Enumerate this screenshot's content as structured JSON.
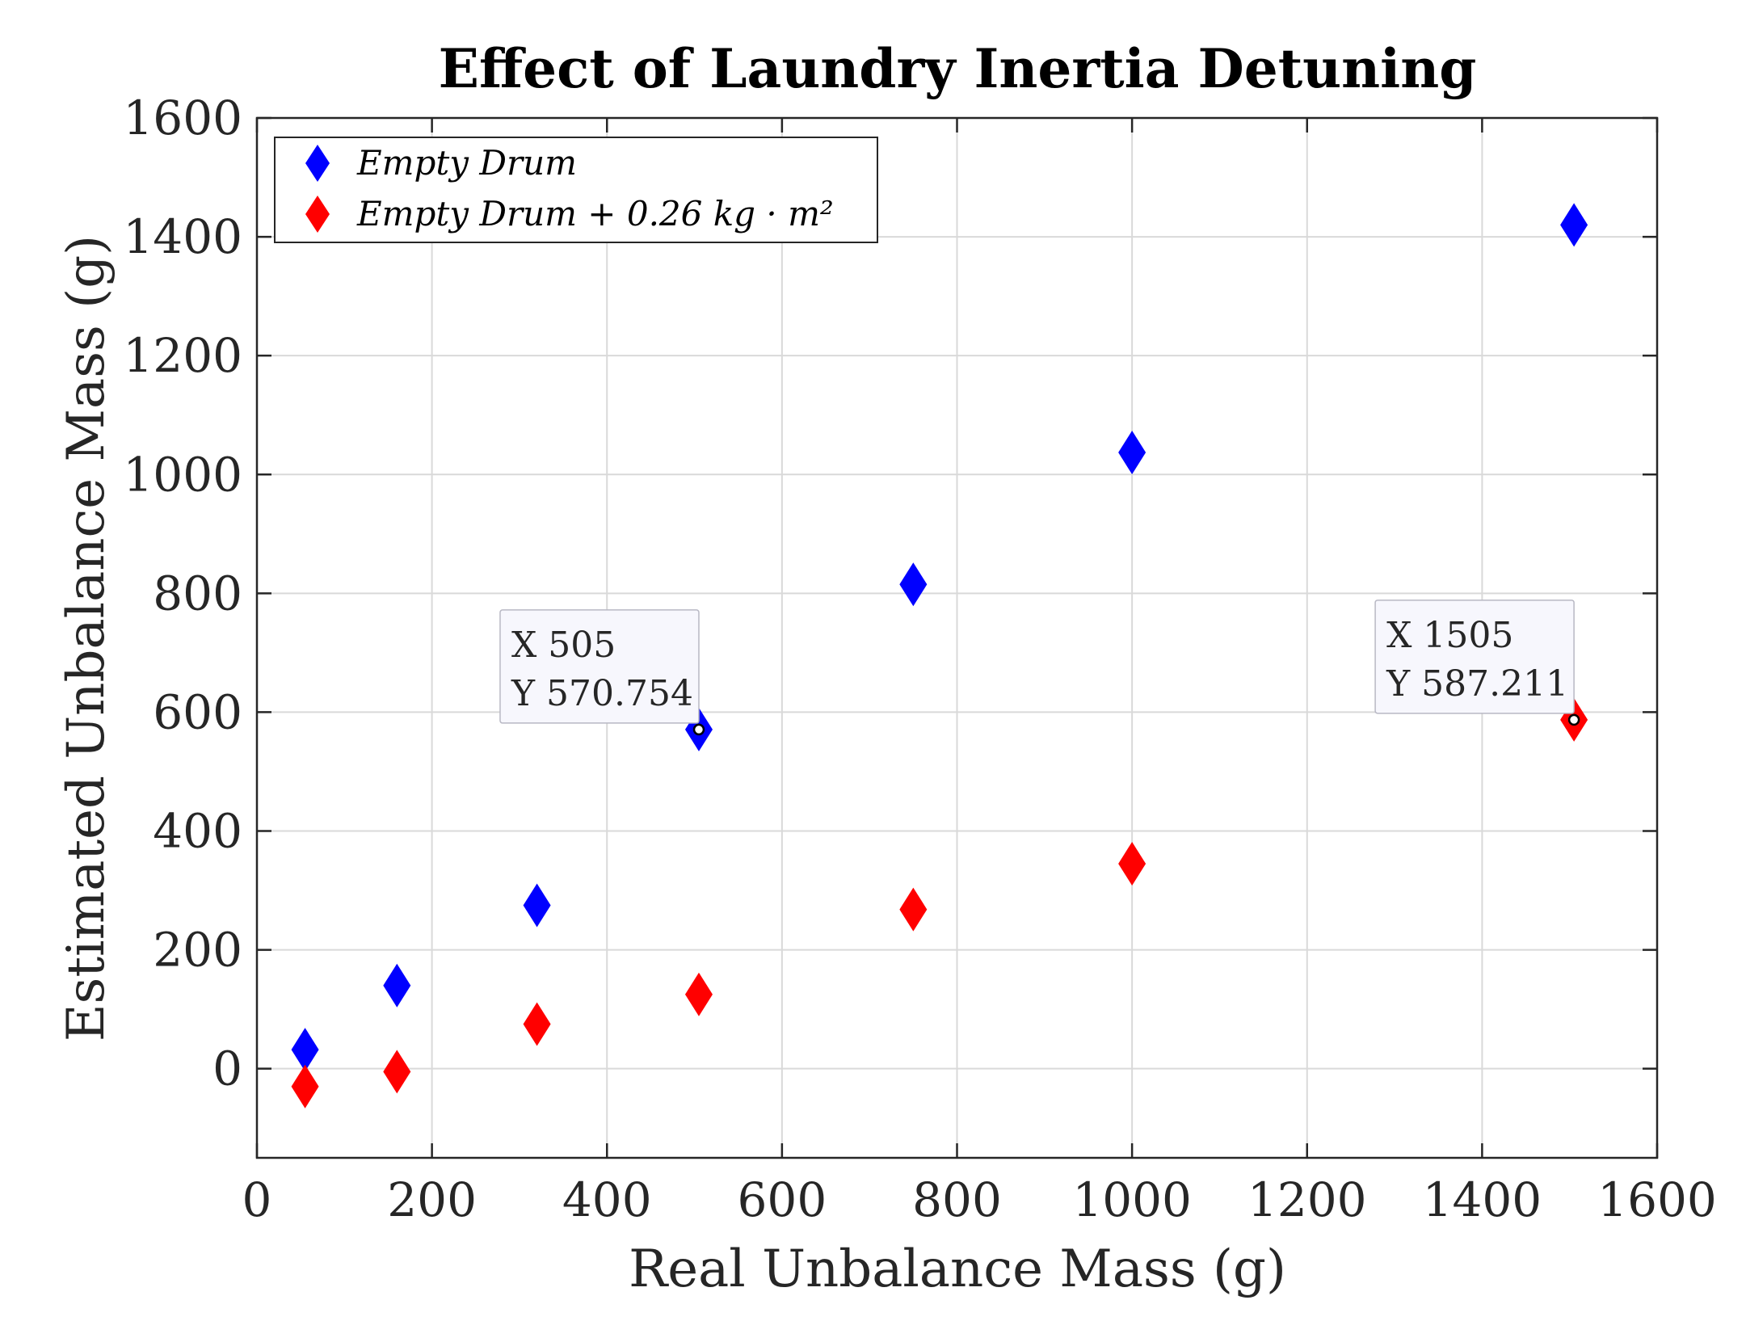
{
  "chart_data": {
    "type": "scatter",
    "title": "Effect of Laundry Inertia Detuning",
    "xlabel": "Real Unbalance Mass (g)",
    "ylabel": "Estimated Unbalance Mass (g)",
    "xlim": [
      0,
      1600
    ],
    "ylim": [
      -150,
      1600
    ],
    "xticks": [
      0,
      200,
      400,
      600,
      800,
      1000,
      1200,
      1400,
      1600
    ],
    "yticks": [
      0,
      200,
      400,
      600,
      800,
      1000,
      1200,
      1400,
      1600
    ],
    "grid": true,
    "legend_position": "top-left",
    "series": [
      {
        "name": "Empty Drum",
        "color": "#0000ff",
        "marker": "diamond",
        "x": [
          55,
          160,
          320,
          505,
          750,
          1000,
          1505
        ],
        "y": [
          32,
          140,
          275,
          570.754,
          815,
          1037,
          1420
        ]
      },
      {
        "name": "Empty Drum + 0.26 kg · m²",
        "color": "#ff0000",
        "marker": "diamond",
        "x": [
          55,
          160,
          320,
          505,
          750,
          1000,
          1505
        ],
        "y": [
          -30,
          -5,
          75,
          125,
          268,
          345,
          587.211
        ]
      }
    ],
    "annotations": [
      {
        "series": 0,
        "point": 3,
        "x_label": "X 505",
        "y_label": "Y 570.754",
        "x": 505,
        "y": 570.754
      },
      {
        "series": 1,
        "point": 6,
        "x_label": "X 1505",
        "y_label": "Y 587.211",
        "x": 1505,
        "y": 587.211
      }
    ]
  }
}
